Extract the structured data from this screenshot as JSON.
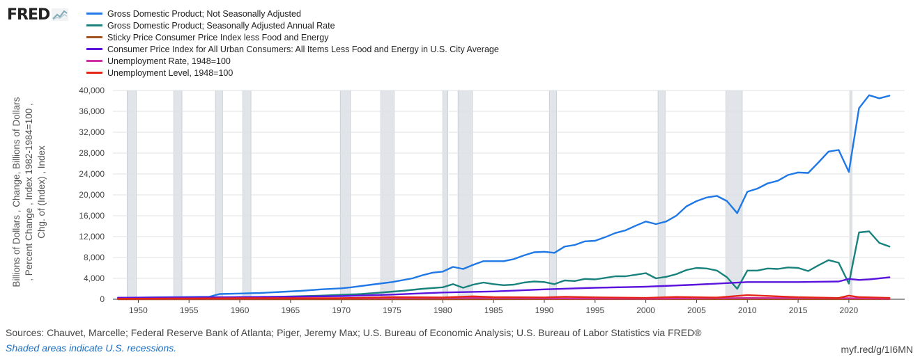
{
  "brand": {
    "logo_text": "FRED",
    "logo_icon": "line-chart-icon"
  },
  "chart_data": {
    "type": "line",
    "title": "",
    "xlabel": "",
    "ylabel": "Billions of Dollars , Change, Billions of Dollars , Percent Change , Index 1982-1984=100 , Chg. of (Index) , Index",
    "xlim": [
      1947.5,
      2025.5
    ],
    "ylim": [
      0,
      40000
    ],
    "x_ticks": [
      1950,
      1955,
      1960,
      1965,
      1970,
      1975,
      1980,
      1985,
      1990,
      1995,
      2000,
      2005,
      2010,
      2015,
      2020
    ],
    "y_ticks": [
      0,
      4000,
      8000,
      12000,
      16000,
      20000,
      24000,
      28000,
      32000,
      36000,
      40000
    ],
    "y_tick_labels": [
      "0",
      "4,000",
      "8,000",
      "12,000",
      "16,000",
      "20,000",
      "24,000",
      "28,000",
      "32,000",
      "36,000",
      "40,000"
    ],
    "grid": "horizontal",
    "legend_position": "top-left",
    "recessions": [
      [
        1948.9,
        1949.8
      ],
      [
        1953.5,
        1954.3
      ],
      [
        1957.6,
        1958.3
      ],
      [
        1960.3,
        1961.1
      ],
      [
        1969.9,
        1970.9
      ],
      [
        1973.9,
        1975.2
      ],
      [
        1980.0,
        1980.5
      ],
      [
        1981.5,
        1982.9
      ],
      [
        1990.5,
        1991.2
      ],
      [
        2001.2,
        2001.9
      ],
      [
        2007.9,
        2009.5
      ],
      [
        2020.1,
        2020.3
      ]
    ],
    "recession_color": "#e1e5ea",
    "series": [
      {
        "name": "Gross Domestic Product; Not Seasonally Adjusted",
        "color": "#1f78e5",
        "x": [
          1948,
          1950,
          1952,
          1954,
          1956,
          1957,
          1958,
          1960,
          1962,
          1964,
          1966,
          1968,
          1970,
          1971,
          1973,
          1975,
          1977,
          1978,
          1979,
          1980,
          1981,
          1982,
          1983,
          1984,
          1986,
          1987,
          1988,
          1989,
          1990,
          1991,
          1992,
          1993,
          1994,
          1995,
          1996,
          1997,
          1998,
          1999,
          2000,
          2001,
          2002,
          2003,
          2004,
          2005,
          2006,
          2007,
          2008,
          2009,
          2010,
          2011,
          2012,
          2013,
          2014,
          2015,
          2016,
          2017,
          2018,
          2019,
          2020,
          2021,
          2022,
          2023,
          2024
        ],
        "values": [
          280,
          320,
          370,
          400,
          450,
          480,
          1000,
          1100,
          1200,
          1400,
          1600,
          1900,
          2100,
          2300,
          2800,
          3300,
          4000,
          4600,
          5100,
          5300,
          6200,
          5800,
          6600,
          7300,
          7300,
          7700,
          8400,
          9000,
          9100,
          8900,
          10100,
          10400,
          11100,
          11200,
          11900,
          12700,
          13200,
          14100,
          14900,
          14400,
          14900,
          16000,
          17800,
          18800,
          19500,
          19800,
          18800,
          16500,
          20600,
          21200,
          22200,
          22700,
          23800,
          24300,
          24200,
          26200,
          28300,
          28600,
          24400,
          36600,
          39100,
          38500,
          39000
        ]
      },
      {
        "name": "Gross Domestic Product; Seasonally Adjusted Annual Rate",
        "color": "#19827d",
        "x": [
          1948,
          1956,
          1958,
          1960,
          1964,
          1968,
          1972,
          1976,
          1978,
          1980,
          1981,
          1982,
          1983,
          1984,
          1985,
          1986,
          1987,
          1988,
          1989,
          1990,
          1991,
          1992,
          1993,
          1994,
          1995,
          1996,
          1997,
          1998,
          1999,
          2000,
          2001,
          2002,
          2003,
          2004,
          2005,
          2006,
          2007,
          2008,
          2009,
          2010,
          2011,
          2012,
          2013,
          2014,
          2015,
          2016,
          2017,
          2018,
          2019,
          2020,
          2021,
          2022,
          2023,
          2024
        ],
        "values": [
          100,
          200,
          300,
          400,
          500,
          700,
          1000,
          1600,
          2000,
          2300,
          2900,
          2200,
          2800,
          3200,
          2900,
          2700,
          2800,
          3200,
          3400,
          3300,
          2900,
          3600,
          3500,
          3900,
          3800,
          4100,
          4400,
          4400,
          4700,
          5000,
          4000,
          4300,
          4800,
          5600,
          6000,
          5900,
          5500,
          4200,
          2000,
          5500,
          5500,
          5900,
          5800,
          6100,
          6000,
          5400,
          6500,
          7500,
          7000,
          3000,
          12800,
          13000,
          10800,
          10100
        ]
      },
      {
        "name": "Sticky Price Consumer Price Index less Food and Energy",
        "color": "#a2521e",
        "x": [
          1948,
          1970,
          1980,
          1990,
          2000,
          2010,
          2024
        ],
        "values": [
          0,
          0,
          0,
          10,
          10,
          10,
          10
        ]
      },
      {
        "name": "Consumer Price Index for All Urban Consumers: All Items Less Food and Energy in U.S. City Average",
        "color": "#5a14dc",
        "x": [
          1948,
          1955,
          1960,
          1965,
          1970,
          1975,
          1980,
          1985,
          1990,
          1995,
          2000,
          2005,
          2008,
          2010,
          2015,
          2019,
          2020,
          2021,
          2022,
          2023,
          2024
        ],
        "values": [
          300,
          350,
          400,
          500,
          600,
          900,
          1300,
          1500,
          1900,
          2200,
          2400,
          2800,
          3100,
          3300,
          3300,
          3400,
          3900,
          3700,
          3800,
          4000,
          4200
        ]
      },
      {
        "name": "Unemployment Rate, 1948=100",
        "color": "#d12fa1",
        "x": [
          1948,
          1960,
          1975,
          1983,
          1990,
          2000,
          2010,
          2020,
          2024
        ],
        "values": [
          100,
          140,
          220,
          250,
          160,
          110,
          240,
          200,
          100
        ]
      },
      {
        "name": "Unemployment Level, 1948=100",
        "color": "#e32417",
        "x": [
          1948,
          1955,
          1960,
          1970,
          1975,
          1980,
          1983,
          1985,
          1990,
          1992,
          1995,
          2000,
          2003,
          2007,
          2010,
          2015,
          2019,
          2020,
          2021,
          2024
        ],
        "values": [
          100,
          150,
          200,
          200,
          400,
          350,
          560,
          400,
          340,
          480,
          360,
          250,
          440,
          320,
          780,
          380,
          240,
          700,
          400,
          250
        ]
      }
    ]
  },
  "footer": {
    "sources": "Sources: Chauvet, Marcelle; Federal Reserve Bank of Atlanta; Piger, Jeremy Max; U.S. Bureau of Economic Analysis; U.S. Bureau of Labor Statistics via FRED®",
    "recession_note": "Shaded areas indicate U.S. recessions.",
    "short_link": "myf.red/g/1I6MN"
  }
}
